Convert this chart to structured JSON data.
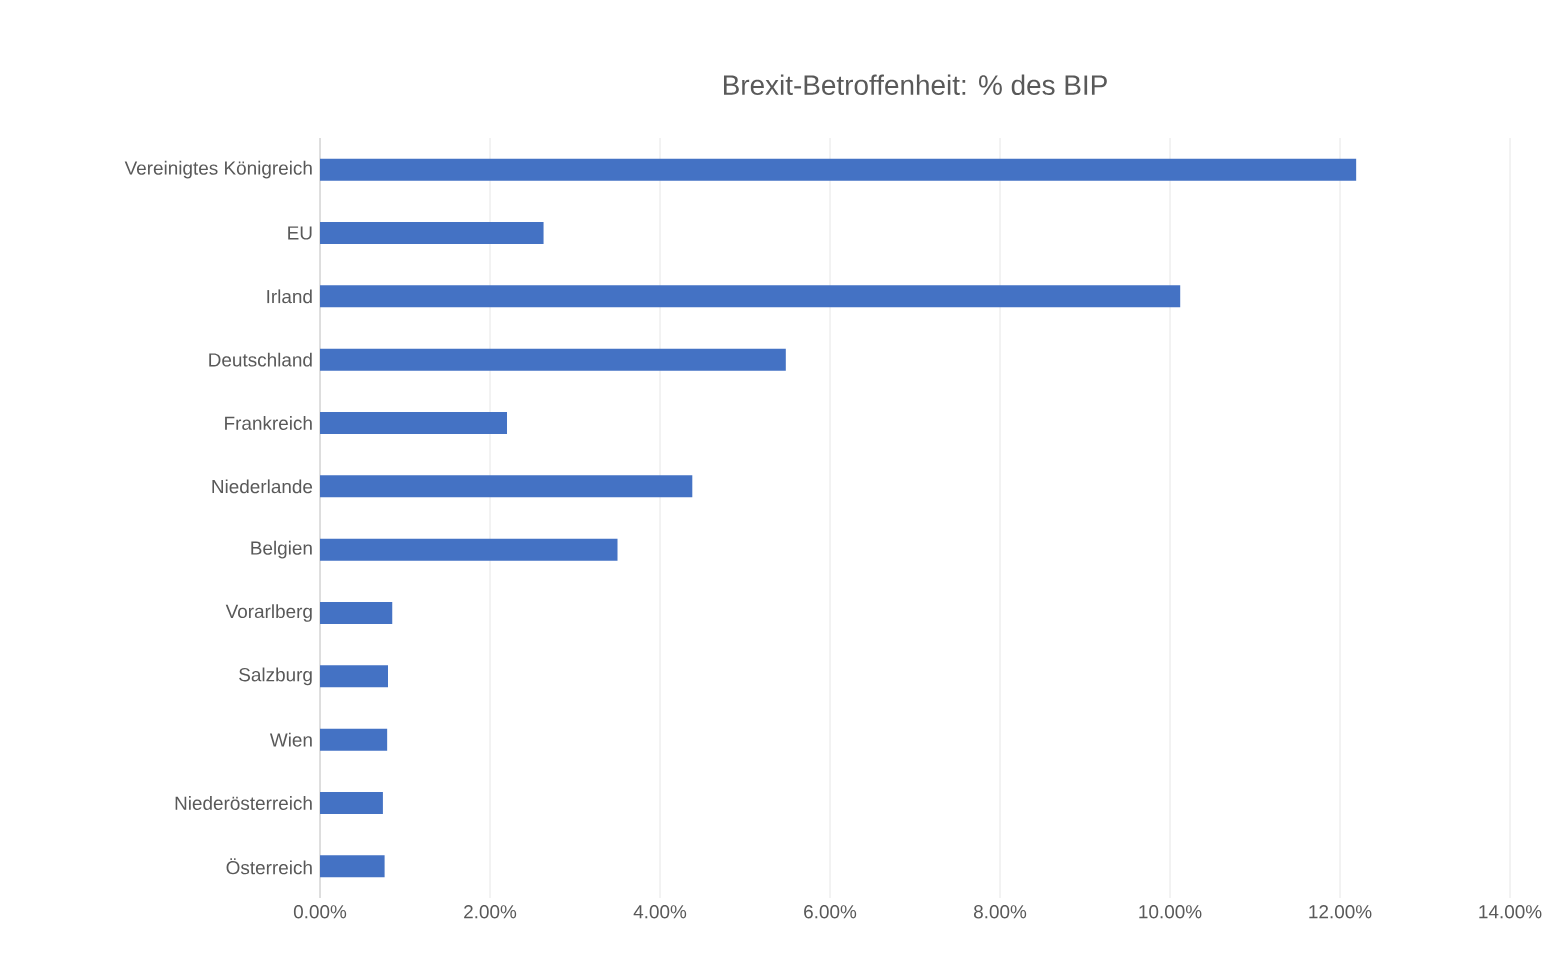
{
  "chart_data": {
    "type": "bar",
    "orientation": "horizontal",
    "title": "Brexit-Betroffenheit: % des BIP",
    "categories": [
      "Vereinigtes Königreich",
      "EU",
      "Irland",
      "Deutschland",
      "Frankreich",
      "Niederlande",
      "Belgien",
      "Vorarlberg",
      "Salzburg",
      "Wien",
      "Niederösterreich",
      "Österreich"
    ],
    "values": [
      12.19,
      2.63,
      10.12,
      5.48,
      2.2,
      4.38,
      3.5,
      0.85,
      0.8,
      0.79,
      0.74,
      0.76
    ],
    "color": "#4472c4",
    "xlim": [
      0,
      14
    ],
    "xticks": [
      {
        "value": 0,
        "label": "0.00%"
      },
      {
        "value": 2,
        "label": "2.00%"
      },
      {
        "value": 4,
        "label": "4.00%"
      },
      {
        "value": 6,
        "label": "6.00%"
      },
      {
        "value": 8,
        "label": "8.00%"
      },
      {
        "value": 10,
        "label": "10.00%"
      },
      {
        "value": 12,
        "label": "12.00%"
      },
      {
        "value": 14,
        "label": "14.00%"
      }
    ],
    "grid": "x"
  }
}
